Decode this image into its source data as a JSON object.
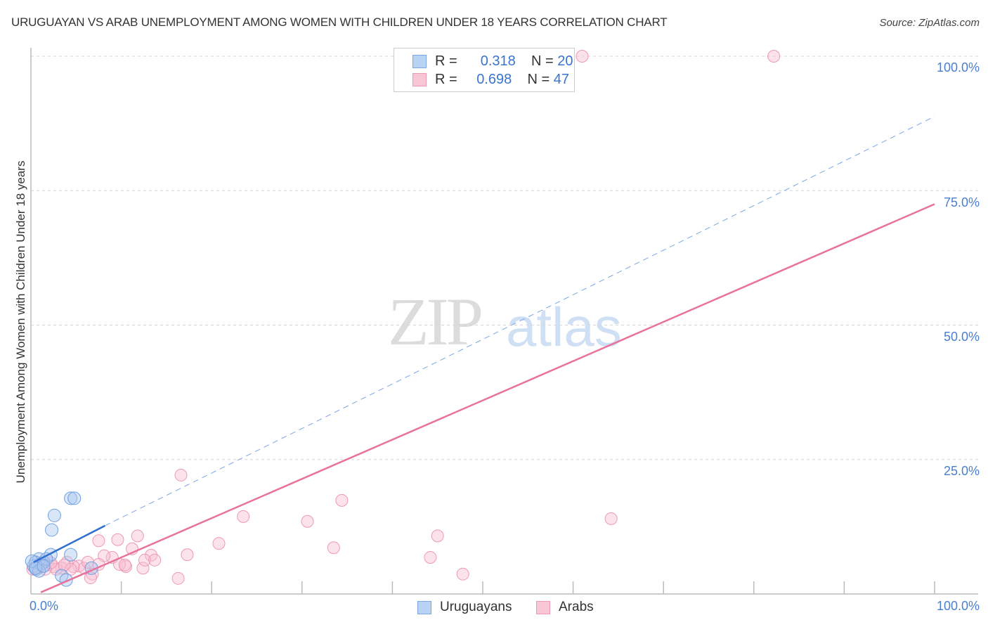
{
  "header": {
    "title": "URUGUAYAN VS ARAB UNEMPLOYMENT AMONG WOMEN WITH CHILDREN UNDER 18 YEARS CORRELATION CHART",
    "source": "Source: ZipAtlas.com"
  },
  "watermark": {
    "zip": "ZIP",
    "atlas": "atlas"
  },
  "legend_top": {
    "rows": [
      {
        "r_label": "R =",
        "r_value": "0.318",
        "n_label": "N =",
        "n_value": "20",
        "color": "#b9d3f5"
      },
      {
        "r_label": "R =",
        "r_value": "0.698",
        "n_label": "N =",
        "n_value": "47",
        "color": "#f9c6d6"
      }
    ]
  },
  "legend_bottom": {
    "items": [
      {
        "label": "Uruguayans",
        "color": "#b9d3f5"
      },
      {
        "label": "Arabs",
        "color": "#f9c6d6"
      }
    ]
  },
  "axes": {
    "ylabel": "Unemployment Among Women with Children Under 18 years",
    "y_ticks": [
      "100.0%",
      "75.0%",
      "50.0%",
      "25.0%"
    ],
    "x_ticks": [
      "0.0%",
      "100.0%"
    ]
  },
  "chart_data": {
    "type": "scatter",
    "title": "URUGUAYAN VS ARAB UNEMPLOYMENT AMONG WOMEN WITH CHILDREN UNDER 18 YEARS CORRELATION CHART",
    "xlabel": "",
    "ylabel": "Unemployment Among Women with Children Under 18 years",
    "xlim": [
      0,
      100
    ],
    "ylim": [
      0,
      100
    ],
    "x_tick_labels": [
      "0.0%",
      "100.0%"
    ],
    "y_tick_labels": [
      "25.0%",
      "50.0%",
      "75.0%",
      "100.0%"
    ],
    "grid": "horizontal dashed",
    "legend_position": "top-center and bottom-center",
    "series": [
      {
        "name": "Uruguayans",
        "color": "#6f9fe0",
        "R": 0.318,
        "N": 20,
        "points": [
          [
            4.4,
            17.8
          ],
          [
            4.8,
            17.8
          ],
          [
            2.6,
            14.6
          ],
          [
            2.3,
            11.9
          ],
          [
            4.4,
            7.3
          ],
          [
            3.4,
            3.4
          ],
          [
            3.9,
            2.6
          ],
          [
            2.2,
            7.3
          ],
          [
            1.4,
            5.9
          ],
          [
            0.9,
            6.5
          ],
          [
            0.5,
            5.9
          ],
          [
            0.3,
            5.2
          ],
          [
            0.6,
            4.6
          ],
          [
            1.1,
            5.5
          ],
          [
            1.7,
            6.5
          ],
          [
            0.1,
            6.1
          ],
          [
            0.9,
            4.3
          ],
          [
            6.7,
            4.8
          ],
          [
            0.5,
            4.8
          ],
          [
            1.4,
            5.2
          ]
        ],
        "trend": {
          "x0": 0.3,
          "y0": 5.9,
          "x1": 8.2,
          "y1": 12.7,
          "extended_to": [
            100,
            88.8
          ],
          "style": "solid then dashed"
        }
      },
      {
        "name": "Arabs",
        "color": "#e8729a",
        "R": 0.698,
        "N": 47,
        "points": [
          [
            61.0,
            100
          ],
          [
            82.2,
            100
          ],
          [
            16.6,
            22.1
          ],
          [
            34.4,
            17.4
          ],
          [
            23.5,
            14.4
          ],
          [
            30.6,
            13.5
          ],
          [
            64.2,
            14.0
          ],
          [
            7.5,
            9.9
          ],
          [
            11.8,
            10.8
          ],
          [
            20.8,
            9.4
          ],
          [
            45.0,
            10.8
          ],
          [
            9.6,
            10.1
          ],
          [
            11.2,
            8.4
          ],
          [
            33.5,
            8.6
          ],
          [
            13.3,
            7.2
          ],
          [
            17.3,
            7.3
          ],
          [
            44.2,
            6.8
          ],
          [
            9.0,
            6.8
          ],
          [
            8.1,
            7.1
          ],
          [
            10.5,
            5.1
          ],
          [
            12.4,
            4.8
          ],
          [
            12.6,
            6.3
          ],
          [
            13.7,
            6.3
          ],
          [
            16.3,
            2.9
          ],
          [
            47.8,
            3.7
          ],
          [
            6.8,
            3.7
          ],
          [
            6.6,
            3.0
          ],
          [
            9.8,
            5.5
          ],
          [
            10.4,
            5.4
          ],
          [
            5.3,
            5.2
          ],
          [
            5.9,
            4.8
          ],
          [
            4.7,
            5.1
          ],
          [
            4.0,
            5.9
          ],
          [
            3.4,
            4.8
          ],
          [
            2.5,
            5.1
          ],
          [
            1.9,
            5.4
          ],
          [
            1.2,
            5.1
          ],
          [
            0.6,
            4.8
          ],
          [
            0.2,
            4.6
          ],
          [
            7.5,
            5.5
          ],
          [
            4.4,
            4.6
          ],
          [
            2.8,
            4.6
          ],
          [
            3.7,
            5.4
          ],
          [
            1.6,
            4.6
          ],
          [
            0.9,
            5.6
          ],
          [
            2.2,
            5.8
          ],
          [
            6.3,
            5.9
          ]
        ],
        "trend": {
          "x0": 1.1,
          "y0": 0.3,
          "x1": 100,
          "y1": 72.5,
          "style": "solid"
        }
      }
    ]
  }
}
